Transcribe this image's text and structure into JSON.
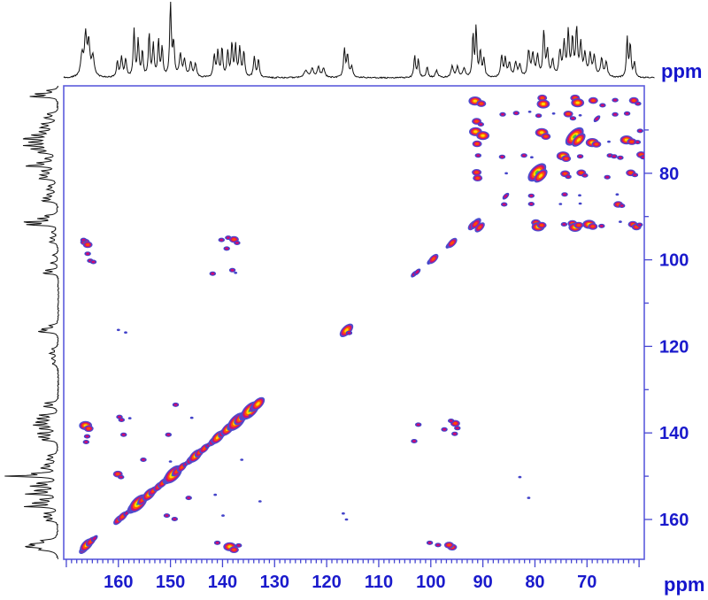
{
  "figure": {
    "kind": "2D NMR contour spectrum with 1D projections",
    "background": "#ffffff"
  },
  "chart_data": {
    "type": "scatter",
    "plot_kind": "2D NMR correlation contour map (13C-13C), both axes in ppm, scales reversed",
    "title": "",
    "xlabel": "ppm",
    "ylabel": "ppm",
    "x_axis": {
      "label": "ppm",
      "range_ppm": [
        170.5,
        59.0
      ],
      "major_tick_step": 10,
      "minor_tick_step": 1,
      "labeled_ticks": [
        160,
        150,
        140,
        130,
        120,
        110,
        100,
        90,
        80,
        70
      ]
    },
    "y_axis": {
      "label": "ppm",
      "range_ppm": [
        59.8,
        169.2
      ],
      "tick_step": 10,
      "labeled_ticks": [
        80,
        100,
        120,
        140,
        160
      ]
    },
    "colors": {
      "frame": "#5c5cdc",
      "ticks": "#4646d2",
      "labels": "#1a1acc",
      "trace": "#111111",
      "tier1": [
        "#4343c9"
      ],
      "tier2": [
        "#4343c9",
        "#cf0a74"
      ],
      "tier3": [
        "#4d4dce",
        "#d01070",
        "#ff4d00"
      ],
      "tier4": [
        "#4d4dce",
        "#d01070",
        "#ff5800",
        "#ffd900"
      ],
      "tier5": [
        "#4d4dce",
        "#d01070",
        "#ff5800",
        "#ffd900",
        "#3fc83f"
      ]
    },
    "peaks_format": "[x_ppm, y_ppm, intensity_tier_1to5, optional_rotation_deg]",
    "peaks": [
      [
        166.6,
        166.8,
        3,
        -45
      ],
      [
        166.1,
        165.9,
        4,
        -45
      ],
      [
        165.3,
        165.1,
        3,
        -45
      ],
      [
        164.6,
        164.4,
        2,
        -45
      ],
      [
        160.0,
        160.1,
        3,
        -45
      ],
      [
        159.2,
        159.3,
        3,
        -45
      ],
      [
        158.4,
        158.5,
        2,
        -45
      ],
      [
        157.0,
        157.1,
        4,
        -45
      ],
      [
        156.2,
        156.3,
        5,
        -45
      ],
      [
        155.4,
        155.5,
        3,
        -45
      ],
      [
        154.1,
        154.2,
        4,
        -45
      ],
      [
        153.3,
        153.4,
        3,
        -45
      ],
      [
        152.3,
        152.4,
        3,
        -45
      ],
      [
        151.5,
        151.6,
        3,
        -45
      ],
      [
        150.2,
        150.3,
        4,
        -45
      ],
      [
        149.5,
        149.6,
        5,
        -45
      ],
      [
        148.8,
        148.9,
        3,
        -45
      ],
      [
        147.8,
        147.9,
        3,
        -45
      ],
      [
        147.0,
        147.1,
        2,
        -45
      ],
      [
        146.1,
        146.2,
        3,
        -45
      ],
      [
        145.2,
        145.3,
        4,
        -45
      ],
      [
        144.4,
        144.5,
        3,
        -45
      ],
      [
        143.5,
        143.6,
        3,
        -45
      ],
      [
        142.7,
        142.8,
        2,
        -45
      ],
      [
        141.8,
        141.9,
        3,
        -45
      ],
      [
        140.9,
        141.0,
        4,
        -45
      ],
      [
        139.9,
        140.0,
        3,
        -45
      ],
      [
        139.0,
        139.1,
        4,
        -45
      ],
      [
        138.2,
        138.3,
        3,
        -45
      ],
      [
        137.3,
        137.4,
        5,
        -45
      ],
      [
        136.5,
        136.6,
        4,
        -45
      ],
      [
        135.5,
        135.6,
        4,
        -45
      ],
      [
        134.7,
        134.8,
        5,
        -45
      ],
      [
        133.9,
        134.0,
        3,
        -45
      ],
      [
        133.2,
        133.3,
        4,
        -45
      ],
      [
        116.2,
        116.3,
        4,
        -45
      ],
      [
        115.7,
        116.9,
        2,
        0
      ],
      [
        103.2,
        103.3,
        2,
        -45
      ],
      [
        102.6,
        102.8,
        2,
        -45
      ],
      [
        100.1,
        100.3,
        2,
        -45
      ],
      [
        99.5,
        99.8,
        3,
        -45
      ],
      [
        96.5,
        96.6,
        2,
        -45
      ],
      [
        95.9,
        96.1,
        3,
        -45
      ],
      [
        91.9,
        92.0,
        3,
        -45
      ],
      [
        91.3,
        91.5,
        3,
        -45
      ],
      [
        91.5,
        63.3,
        4
      ],
      [
        90.3,
        63.9,
        3
      ],
      [
        78.6,
        62.6,
        3
      ],
      [
        78.4,
        64.0,
        4
      ],
      [
        72.3,
        62.6,
        3
      ],
      [
        71.8,
        63.7,
        4
      ],
      [
        68.8,
        63.2,
        3
      ],
      [
        67.0,
        64.3,
        2
      ],
      [
        64.6,
        63.1,
        2
      ],
      [
        61.0,
        63.2,
        3
      ],
      [
        60.2,
        63.9,
        2
      ],
      [
        86.2,
        66.4,
        2
      ],
      [
        83.6,
        66.1,
        2
      ],
      [
        81.0,
        65.8,
        1
      ],
      [
        79.3,
        66.7,
        2
      ],
      [
        76.4,
        66.2,
        1
      ],
      [
        73.6,
        66.3,
        3
      ],
      [
        72.7,
        67.3,
        2
      ],
      [
        71.3,
        66.6,
        1
      ],
      [
        68.1,
        67.4,
        2,
        -45
      ],
      [
        64.6,
        66.4,
        2
      ],
      [
        62.3,
        66.2,
        2
      ],
      [
        91.2,
        68.0,
        3
      ],
      [
        90.4,
        68.7,
        2
      ],
      [
        91.4,
        70.4,
        4
      ],
      [
        90.0,
        71.3,
        4
      ],
      [
        91.1,
        73.2,
        3
      ],
      [
        78.7,
        70.6,
        4
      ],
      [
        77.9,
        71.5,
        3
      ],
      [
        72.4,
        71.5,
        5,
        -45
      ],
      [
        71.6,
        72.3,
        4,
        -45
      ],
      [
        69.0,
        72.9,
        4
      ],
      [
        68.2,
        73.3,
        3
      ],
      [
        65.8,
        72.7,
        1
      ],
      [
        62.4,
        72.3,
        4
      ],
      [
        61.4,
        72.7,
        3
      ],
      [
        60.3,
        72.8,
        2
      ],
      [
        59.8,
        70.2,
        2
      ],
      [
        90.9,
        75.9,
        2
      ],
      [
        86.3,
        76.2,
        2
      ],
      [
        82.1,
        75.9,
        2
      ],
      [
        80.6,
        76.3,
        1
      ],
      [
        74.6,
        76.0,
        4
      ],
      [
        74.0,
        76.6,
        3
      ],
      [
        71.3,
        76.1,
        2
      ],
      [
        65.6,
        75.9,
        2
      ],
      [
        64.8,
        76.1,
        2
      ],
      [
        63.6,
        76.4,
        2
      ],
      [
        59.6,
        75.7,
        3
      ],
      [
        59.2,
        76.3,
        2
      ],
      [
        91.2,
        79.8,
        3
      ],
      [
        91.0,
        81.1,
        3
      ],
      [
        85.5,
        80.0,
        1
      ],
      [
        79.6,
        79.8,
        5,
        -45
      ],
      [
        78.9,
        80.6,
        4,
        -45
      ],
      [
        74.2,
        80.1,
        3
      ],
      [
        73.6,
        80.8,
        2
      ],
      [
        71.1,
        79.9,
        3
      ],
      [
        70.4,
        80.5,
        2
      ],
      [
        66.1,
        80.9,
        2
      ],
      [
        61.6,
        79.9,
        3
      ],
      [
        60.8,
        80.4,
        2
      ],
      [
        85.6,
        85.3,
        2,
        -45
      ],
      [
        80.7,
        85.2,
        2
      ],
      [
        74.3,
        84.9,
        2
      ],
      [
        71.4,
        85.1,
        1
      ],
      [
        64.2,
        84.9,
        1
      ],
      [
        85.9,
        87.2,
        2
      ],
      [
        80.7,
        87.1,
        2
      ],
      [
        75.1,
        87.1,
        1
      ],
      [
        71.3,
        87.0,
        1
      ],
      [
        64.0,
        87.2,
        3
      ],
      [
        63.3,
        87.5,
        2
      ],
      [
        91.4,
        91.7,
        3,
        -45
      ],
      [
        90.6,
        92.5,
        3,
        -45
      ],
      [
        79.8,
        91.4,
        3
      ],
      [
        79.4,
        92.4,
        4
      ],
      [
        78.7,
        92.0,
        3
      ],
      [
        74.4,
        91.8,
        2
      ],
      [
        72.8,
        91.6,
        3
      ],
      [
        72.3,
        92.5,
        4
      ],
      [
        71.6,
        92.0,
        3
      ],
      [
        69.6,
        91.8,
        4
      ],
      [
        68.9,
        92.3,
        3
      ],
      [
        67.2,
        92.2,
        2
      ],
      [
        63.6,
        91.2,
        1
      ],
      [
        61.2,
        91.8,
        3
      ],
      [
        60.5,
        92.4,
        3
      ],
      [
        59.9,
        91.9,
        2
      ],
      [
        166.4,
        95.9,
        3
      ],
      [
        165.9,
        96.5,
        3
      ],
      [
        166.7,
        95.4,
        2
      ],
      [
        165.9,
        98.6,
        2
      ],
      [
        165.4,
        100.2,
        2
      ],
      [
        164.8,
        100.5,
        2
      ],
      [
        140.2,
        95.4,
        2
      ],
      [
        138.9,
        94.9,
        2
      ],
      [
        137.8,
        95.3,
        3
      ],
      [
        137.2,
        96.1,
        2
      ],
      [
        139.2,
        97.4,
        2
      ],
      [
        141.9,
        103.2,
        2
      ],
      [
        138.1,
        102.4,
        2
      ],
      [
        137.5,
        103.0,
        1
      ],
      [
        95.9,
        166.4,
        3
      ],
      [
        96.5,
        165.9,
        3
      ],
      [
        98.6,
        165.9,
        2
      ],
      [
        100.2,
        165.4,
        2
      ],
      [
        95.4,
        140.2,
        2
      ],
      [
        94.9,
        138.9,
        2
      ],
      [
        95.3,
        137.8,
        3
      ],
      [
        96.1,
        137.2,
        2
      ],
      [
        97.4,
        139.2,
        2
      ],
      [
        103.2,
        141.9,
        2
      ],
      [
        102.4,
        138.1,
        2
      ],
      [
        166.3,
        138.3,
        4
      ],
      [
        165.7,
        139.0,
        3
      ],
      [
        166.0,
        140.8,
        2
      ],
      [
        166.2,
        142.1,
        2
      ],
      [
        159.8,
        136.3,
        2
      ],
      [
        159.4,
        137.0,
        2
      ],
      [
        159.0,
        140.4,
        2
      ],
      [
        157.8,
        136.6,
        1
      ],
      [
        150.4,
        140.4,
        2
      ],
      [
        149.0,
        133.5,
        2
      ],
      [
        145.9,
        136.5,
        1
      ],
      [
        155.2,
        146.2,
        2
      ],
      [
        150.0,
        146.6,
        1
      ],
      [
        160.1,
        149.5,
        3
      ],
      [
        159.5,
        150.2,
        2
      ],
      [
        146.5,
        155.0,
        2
      ],
      [
        150.7,
        159.1,
        2
      ],
      [
        149.2,
        159.9,
        2
      ],
      [
        141.4,
        154.3,
        1
      ],
      [
        139.9,
        159.1,
        1
      ],
      [
        136.3,
        146.2,
        1
      ],
      [
        134.7,
        136.0,
        1
      ],
      [
        132.8,
        155.8,
        1
      ],
      [
        141.0,
        165.4,
        2
      ],
      [
        138.6,
        166.3,
        4
      ],
      [
        137.8,
        167.0,
        3
      ],
      [
        136.9,
        166.0,
        2
      ],
      [
        160.0,
        116.2,
        1
      ],
      [
        158.6,
        116.8,
        1
      ],
      [
        116.2,
        160.0,
        1
      ],
      [
        116.8,
        158.6,
        1
      ],
      [
        82.9,
        150.2,
        1
      ],
      [
        81.2,
        155.0,
        1
      ]
    ],
    "projection": {
      "description": "1D 13C trace shown along top (horizontal) and left (vertical) edges",
      "peaks_format": "[ppm, relative_amplitude_0to1, halfwidth_ppm]",
      "peaks": [
        [
          167.0,
          0.3,
          0.3
        ],
        [
          166.3,
          0.55,
          0.25
        ],
        [
          165.7,
          0.45,
          0.25
        ],
        [
          164.9,
          0.28,
          0.3
        ],
        [
          160.2,
          0.22,
          0.2
        ],
        [
          159.4,
          0.28,
          0.2
        ],
        [
          158.6,
          0.25,
          0.2
        ],
        [
          157.0,
          0.65,
          0.18
        ],
        [
          156.2,
          0.5,
          0.18
        ],
        [
          155.4,
          0.35,
          0.18
        ],
        [
          154.1,
          0.6,
          0.18
        ],
        [
          153.3,
          0.45,
          0.18
        ],
        [
          152.3,
          0.5,
          0.18
        ],
        [
          151.6,
          0.4,
          0.18
        ],
        [
          150.0,
          1.0,
          0.18
        ],
        [
          149.4,
          0.45,
          0.2
        ],
        [
          148.1,
          0.3,
          0.25
        ],
        [
          147.3,
          0.22,
          0.25
        ],
        [
          146.1,
          0.2,
          0.25
        ],
        [
          145.2,
          0.18,
          0.25
        ],
        [
          141.6,
          0.3,
          0.2
        ],
        [
          140.9,
          0.35,
          0.2
        ],
        [
          140.1,
          0.4,
          0.18
        ],
        [
          139.0,
          0.35,
          0.2
        ],
        [
          138.2,
          0.45,
          0.18
        ],
        [
          137.5,
          0.42,
          0.18
        ],
        [
          136.7,
          0.4,
          0.2
        ],
        [
          135.9,
          0.35,
          0.2
        ],
        [
          133.9,
          0.28,
          0.2
        ],
        [
          133.1,
          0.24,
          0.2
        ],
        [
          124.0,
          0.1,
          0.4
        ],
        [
          122.8,
          0.12,
          0.3
        ],
        [
          121.6,
          0.14,
          0.25
        ],
        [
          120.6,
          0.12,
          0.3
        ],
        [
          116.6,
          0.38,
          0.2
        ],
        [
          116.0,
          0.3,
          0.2
        ],
        [
          115.2,
          0.15,
          0.25
        ],
        [
          103.1,
          0.3,
          0.18
        ],
        [
          102.4,
          0.25,
          0.18
        ],
        [
          100.7,
          0.15,
          0.2
        ],
        [
          98.9,
          0.1,
          0.25
        ],
        [
          95.9,
          0.16,
          0.25
        ],
        [
          94.9,
          0.14,
          0.25
        ],
        [
          93.6,
          0.12,
          0.3
        ],
        [
          91.9,
          0.6,
          0.16
        ],
        [
          91.3,
          0.7,
          0.16
        ],
        [
          90.5,
          0.35,
          0.2
        ],
        [
          89.8,
          0.25,
          0.2
        ],
        [
          86.4,
          0.3,
          0.2
        ],
        [
          85.7,
          0.25,
          0.2
        ],
        [
          84.9,
          0.2,
          0.25
        ],
        [
          83.7,
          0.2,
          0.25
        ],
        [
          82.9,
          0.16,
          0.25
        ],
        [
          81.2,
          0.35,
          0.25
        ],
        [
          80.4,
          0.3,
          0.25
        ],
        [
          79.5,
          0.28,
          0.25
        ],
        [
          78.3,
          0.62,
          0.2
        ],
        [
          77.6,
          0.35,
          0.22
        ],
        [
          76.6,
          0.22,
          0.25
        ],
        [
          75.2,
          0.35,
          0.25
        ],
        [
          74.4,
          0.45,
          0.22
        ],
        [
          73.6,
          0.6,
          0.2
        ],
        [
          72.8,
          0.5,
          0.22
        ],
        [
          72.0,
          0.65,
          0.2
        ],
        [
          71.2,
          0.45,
          0.22
        ],
        [
          70.4,
          0.3,
          0.25
        ],
        [
          69.4,
          0.3,
          0.25
        ],
        [
          68.6,
          0.28,
          0.25
        ],
        [
          67.2,
          0.25,
          0.25
        ],
        [
          66.3,
          0.2,
          0.25
        ],
        [
          62.3,
          0.55,
          0.16
        ],
        [
          61.7,
          0.45,
          0.18
        ],
        [
          60.9,
          0.2,
          0.2
        ]
      ]
    }
  }
}
